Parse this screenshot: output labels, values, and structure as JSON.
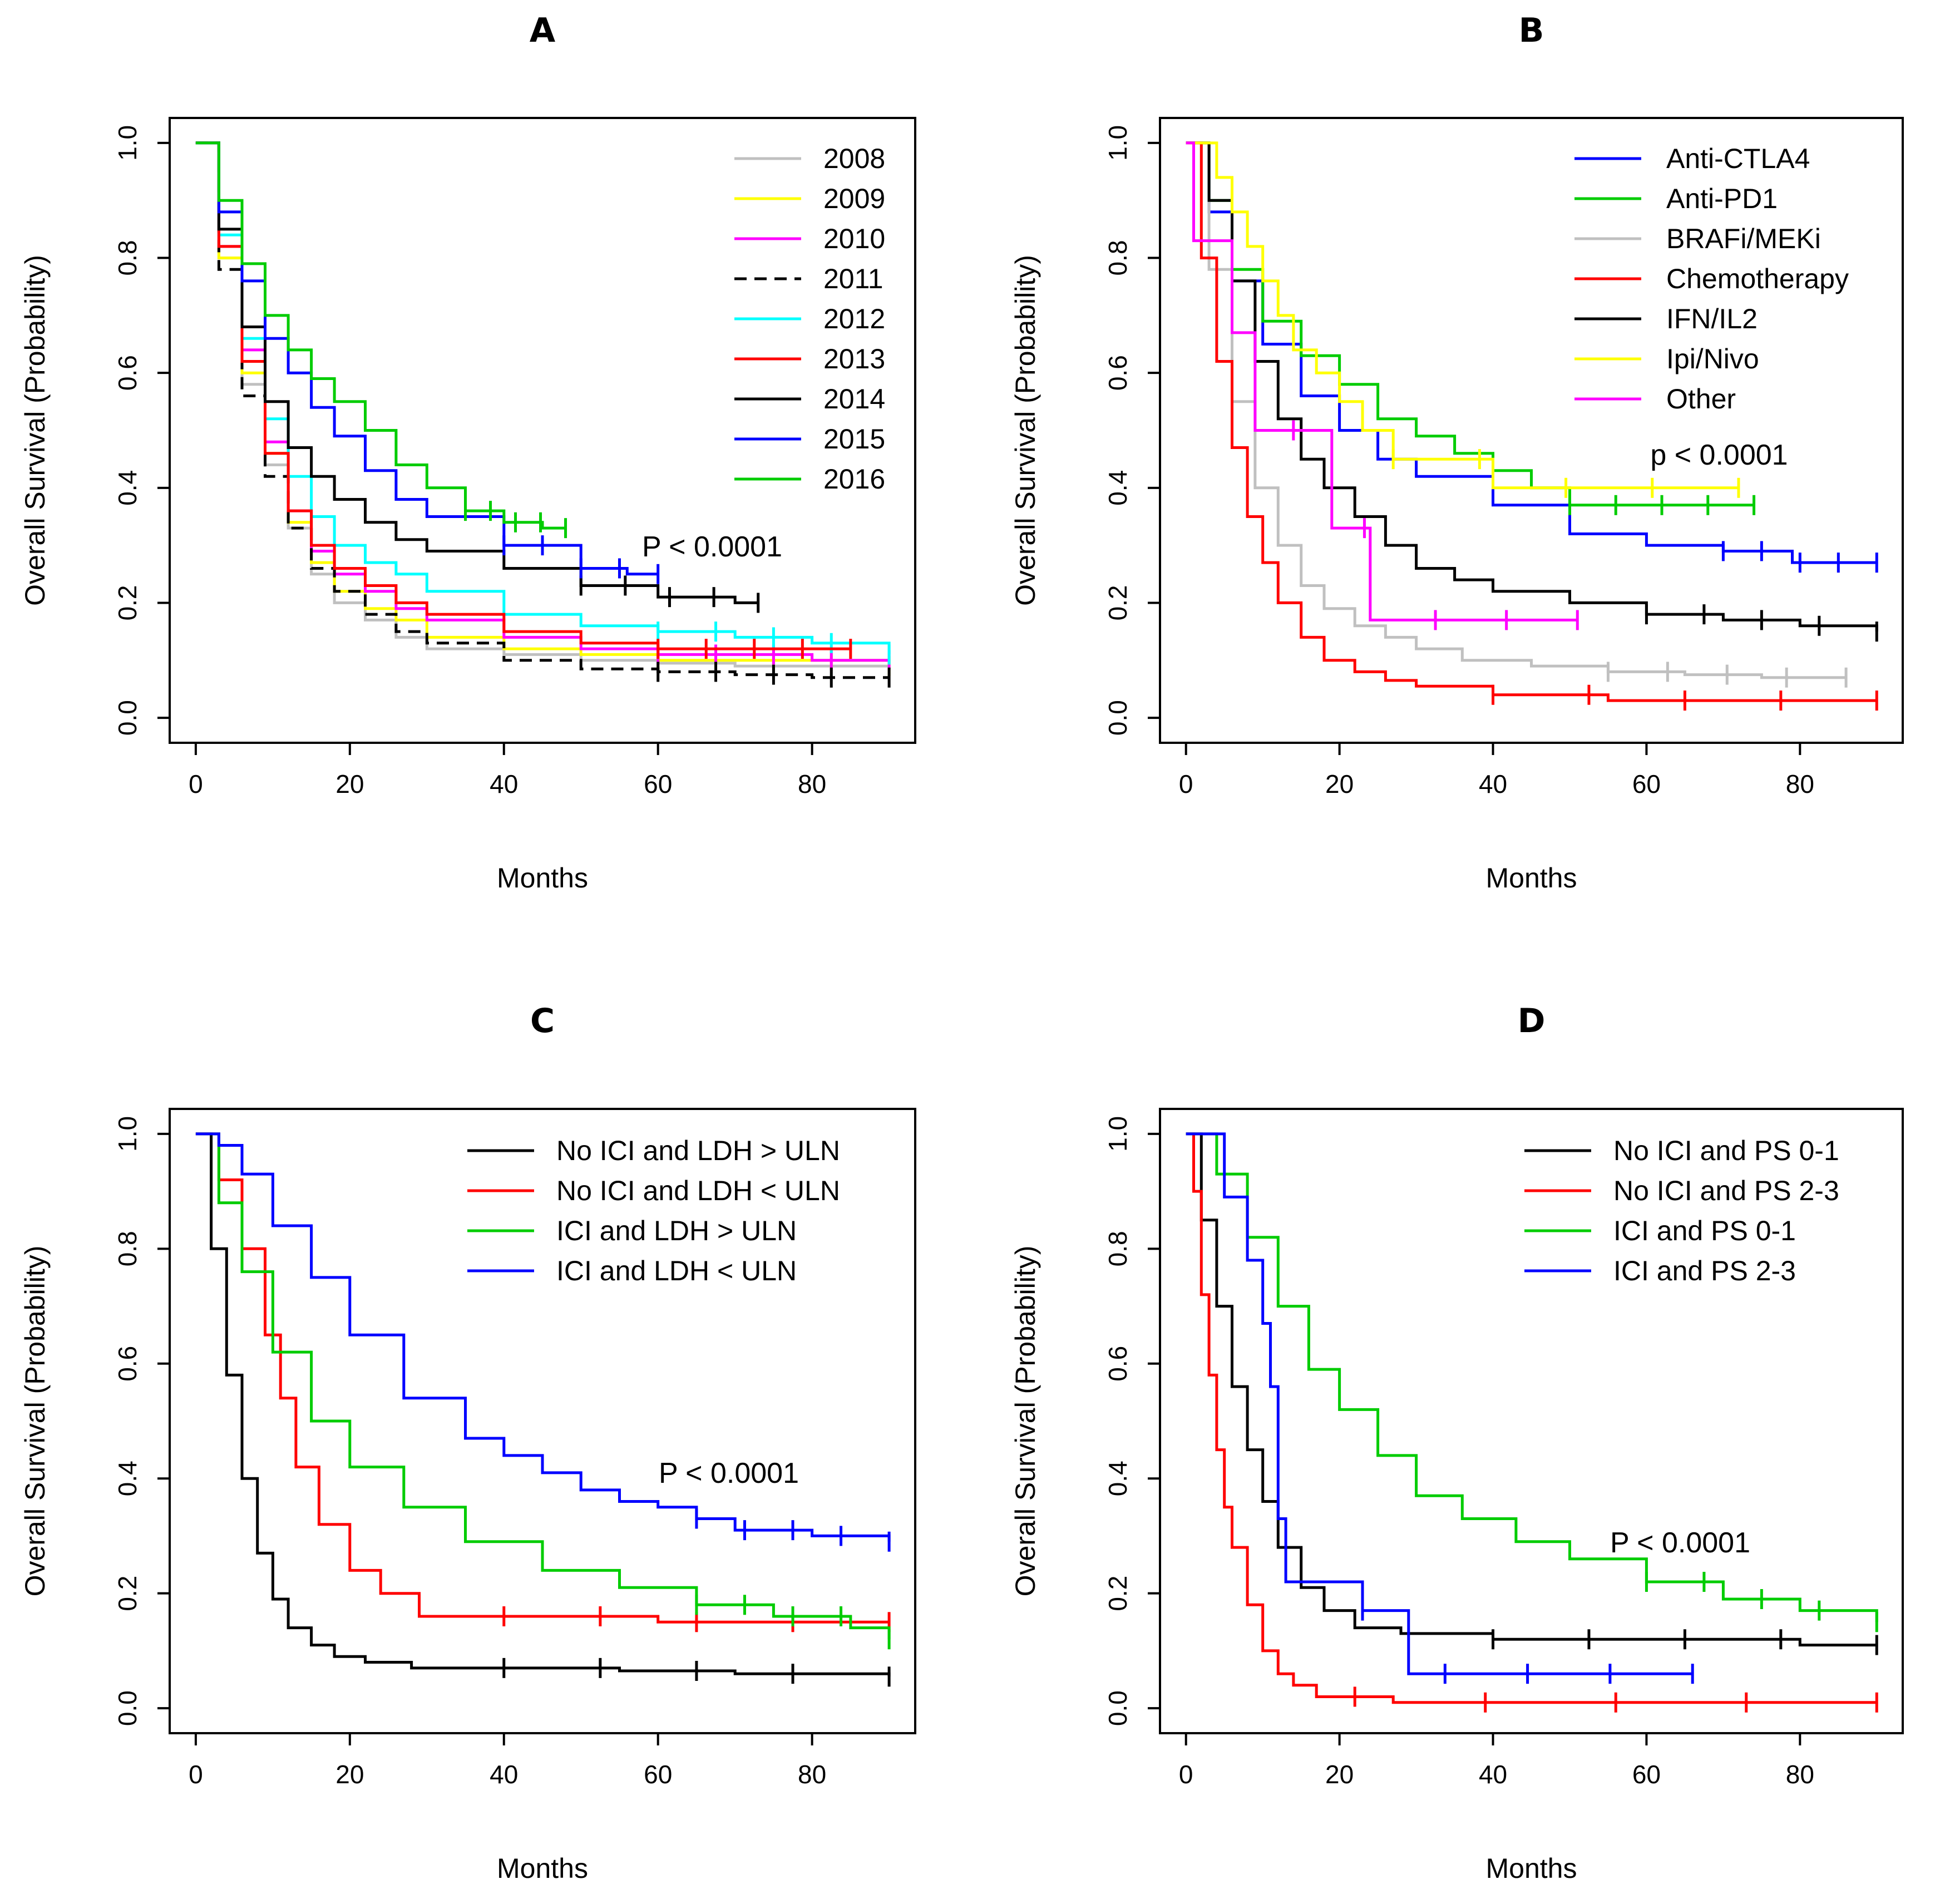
{
  "colors": {
    "grey": "#c0c0c0",
    "yellow": "#ffff00",
    "magenta": "#ff00ff",
    "black": "#000000",
    "cyan": "#00ffff",
    "red": "#ff0000",
    "blue": "#0000ff",
    "green": "#00cc00"
  },
  "chart_data": [
    {
      "type": "line",
      "panel": "A",
      "title": "A",
      "xlabel": "Months",
      "ylabel": "Overall Survival (Probability)",
      "xlim": [
        0,
        90
      ],
      "ylim": [
        0,
        1
      ],
      "xticks": [
        "0",
        "20",
        "40",
        "60",
        "80"
      ],
      "yticks": [
        "0.0",
        "0.2",
        "0.4",
        "0.6",
        "0.8",
        "1.0"
      ],
      "legend_position": "top-right",
      "annotation": "P < 0.0001",
      "series": [
        {
          "name": "2008",
          "color": "grey",
          "x": [
            0,
            3,
            6,
            9,
            12,
            15,
            18,
            22,
            26,
            30,
            40,
            50,
            60,
            70,
            80,
            90
          ],
          "y": [
            1.0,
            0.8,
            0.58,
            0.44,
            0.33,
            0.25,
            0.2,
            0.17,
            0.14,
            0.12,
            0.11,
            0.1,
            0.095,
            0.09,
            0.09,
            0.09
          ]
        },
        {
          "name": "2009",
          "color": "yellow",
          "x": [
            0,
            3,
            6,
            9,
            12,
            15,
            18,
            22,
            26,
            30,
            40,
            50,
            60,
            70,
            80,
            90
          ],
          "y": [
            1.0,
            0.8,
            0.6,
            0.46,
            0.34,
            0.27,
            0.22,
            0.19,
            0.17,
            0.14,
            0.12,
            0.11,
            0.1,
            0.1,
            0.1,
            0.09
          ]
        },
        {
          "name": "2010",
          "color": "magenta",
          "x": [
            0,
            3,
            6,
            9,
            12,
            15,
            18,
            22,
            26,
            30,
            40,
            50,
            60,
            70,
            80,
            90
          ],
          "y": [
            1.0,
            0.82,
            0.64,
            0.48,
            0.36,
            0.29,
            0.25,
            0.22,
            0.19,
            0.17,
            0.14,
            0.12,
            0.11,
            0.11,
            0.1,
            0.1
          ]
        },
        {
          "name": "2011",
          "color": "black",
          "dashed": true,
          "x": [
            0,
            3,
            6,
            9,
            12,
            15,
            18,
            22,
            26,
            30,
            40,
            50,
            60,
            70,
            80,
            90
          ],
          "y": [
            1.0,
            0.78,
            0.56,
            0.42,
            0.33,
            0.26,
            0.22,
            0.18,
            0.15,
            0.13,
            0.1,
            0.085,
            0.08,
            0.075,
            0.07,
            0.07
          ]
        },
        {
          "name": "2012",
          "color": "cyan",
          "x": [
            0,
            3,
            6,
            9,
            12,
            15,
            18,
            22,
            26,
            30,
            40,
            50,
            60,
            70,
            80,
            90
          ],
          "y": [
            1.0,
            0.84,
            0.66,
            0.52,
            0.42,
            0.35,
            0.3,
            0.27,
            0.25,
            0.22,
            0.18,
            0.16,
            0.15,
            0.14,
            0.13,
            0.11
          ]
        },
        {
          "name": "2013",
          "color": "red",
          "x": [
            0,
            3,
            6,
            9,
            12,
            15,
            18,
            22,
            26,
            30,
            40,
            50,
            60,
            70,
            80,
            85
          ],
          "y": [
            1.0,
            0.82,
            0.62,
            0.46,
            0.36,
            0.3,
            0.26,
            0.23,
            0.2,
            0.18,
            0.15,
            0.13,
            0.12,
            0.12,
            0.12,
            0.12
          ]
        },
        {
          "name": "2014",
          "color": "black",
          "x": [
            0,
            3,
            6,
            9,
            12,
            15,
            18,
            22,
            26,
            30,
            40,
            50,
            60,
            70,
            73
          ],
          "y": [
            1.0,
            0.85,
            0.68,
            0.55,
            0.47,
            0.42,
            0.38,
            0.34,
            0.31,
            0.29,
            0.26,
            0.23,
            0.21,
            0.2,
            0.2
          ]
        },
        {
          "name": "2015",
          "color": "blue",
          "x": [
            0,
            3,
            6,
            9,
            12,
            15,
            18,
            22,
            26,
            30,
            40,
            50,
            56,
            60
          ],
          "y": [
            1.0,
            0.88,
            0.76,
            0.66,
            0.6,
            0.54,
            0.49,
            0.43,
            0.38,
            0.35,
            0.3,
            0.26,
            0.25,
            0.25
          ]
        },
        {
          "name": "2016",
          "color": "green",
          "x": [
            0,
            3,
            6,
            9,
            12,
            15,
            18,
            22,
            26,
            30,
            35,
            40,
            45,
            48
          ],
          "y": [
            1.0,
            0.9,
            0.79,
            0.7,
            0.64,
            0.59,
            0.55,
            0.5,
            0.44,
            0.4,
            0.36,
            0.34,
            0.33,
            0.33
          ]
        }
      ]
    },
    {
      "type": "line",
      "panel": "B",
      "title": "B",
      "xlabel": "Months",
      "ylabel": "Overall Survival (Probability)",
      "xlim": [
        0,
        90
      ],
      "ylim": [
        0,
        1
      ],
      "xticks": [
        "0",
        "20",
        "40",
        "60",
        "80"
      ],
      "yticks": [
        "0.0",
        "0.2",
        "0.4",
        "0.6",
        "0.8",
        "1.0"
      ],
      "legend_position": "top-right",
      "annotation": "p < 0.0001",
      "series": [
        {
          "name": "Anti-CTLA4",
          "color": "blue",
          "x": [
            0,
            3,
            6,
            10,
            15,
            20,
            25,
            30,
            40,
            50,
            60,
            70,
            78,
            79,
            90
          ],
          "y": [
            1.0,
            0.88,
            0.76,
            0.65,
            0.56,
            0.5,
            0.45,
            0.42,
            0.37,
            0.32,
            0.3,
            0.29,
            0.29,
            0.27,
            0.27
          ]
        },
        {
          "name": "Anti-PD1",
          "color": "green",
          "x": [
            0,
            3,
            6,
            10,
            15,
            20,
            25,
            30,
            35,
            40,
            45,
            50,
            60,
            70,
            74
          ],
          "y": [
            1.0,
            0.9,
            0.78,
            0.69,
            0.63,
            0.58,
            0.52,
            0.49,
            0.46,
            0.43,
            0.4,
            0.37,
            0.37,
            0.37,
            0.37
          ]
        },
        {
          "name": "BRAFi/MEKi",
          "color": "grey",
          "x": [
            0,
            3,
            6,
            9,
            12,
            15,
            18,
            22,
            26,
            30,
            36,
            45,
            55,
            65,
            75,
            86
          ],
          "y": [
            1.0,
            0.78,
            0.55,
            0.4,
            0.3,
            0.23,
            0.19,
            0.16,
            0.14,
            0.12,
            0.1,
            0.09,
            0.08,
            0.075,
            0.07,
            0.07
          ]
        },
        {
          "name": "Chemotherapy",
          "color": "red",
          "x": [
            0,
            2,
            4,
            6,
            8,
            10,
            12,
            15,
            18,
            22,
            26,
            30,
            40,
            55,
            70,
            90
          ],
          "y": [
            1.0,
            0.8,
            0.62,
            0.47,
            0.35,
            0.27,
            0.2,
            0.14,
            0.1,
            0.08,
            0.065,
            0.055,
            0.04,
            0.03,
            0.03,
            0.03
          ]
        },
        {
          "name": "IFN/IL2",
          "color": "black",
          "x": [
            0,
            3,
            6,
            9,
            12,
            15,
            18,
            22,
            26,
            30,
            35,
            40,
            50,
            60,
            70,
            80,
            90
          ],
          "y": [
            1.0,
            0.9,
            0.76,
            0.62,
            0.52,
            0.45,
            0.4,
            0.35,
            0.3,
            0.26,
            0.24,
            0.22,
            0.2,
            0.18,
            0.17,
            0.16,
            0.15
          ]
        },
        {
          "name": "Ipi/Nivo",
          "color": "yellow",
          "x": [
            0,
            2,
            4,
            6,
            8,
            10,
            12,
            14,
            17,
            20,
            23,
            27,
            40,
            50,
            72
          ],
          "y": [
            1.0,
            1.0,
            0.94,
            0.88,
            0.82,
            0.76,
            0.7,
            0.64,
            0.6,
            0.55,
            0.5,
            0.45,
            0.4,
            0.4,
            0.4
          ]
        },
        {
          "name": "Other",
          "color": "magenta",
          "x": [
            0,
            1,
            2,
            4,
            6,
            9,
            14,
            19,
            24,
            51
          ],
          "y": [
            1.0,
            0.83,
            0.83,
            0.83,
            0.67,
            0.5,
            0.5,
            0.33,
            0.17,
            0.17
          ]
        }
      ]
    },
    {
      "type": "line",
      "panel": "C",
      "title": "C",
      "xlabel": "Months",
      "ylabel": "Overall Survival (Probability)",
      "xlim": [
        0,
        90
      ],
      "ylim": [
        0,
        1
      ],
      "xticks": [
        "0",
        "20",
        "40",
        "60",
        "80"
      ],
      "yticks": [
        "0.0",
        "0.2",
        "0.4",
        "0.6",
        "0.8",
        "1.0"
      ],
      "legend_position": "top-right",
      "annotation": "P < 0.0001",
      "series": [
        {
          "name": "No ICI and LDH > ULN",
          "color": "black",
          "x": [
            0,
            2,
            4,
            6,
            8,
            10,
            12,
            15,
            18,
            22,
            28,
            40,
            55,
            70,
            90
          ],
          "y": [
            1.0,
            0.8,
            0.58,
            0.4,
            0.27,
            0.19,
            0.14,
            0.11,
            0.09,
            0.08,
            0.07,
            0.07,
            0.065,
            0.06,
            0.055
          ]
        },
        {
          "name": "No ICI and LDH < ULN",
          "color": "red",
          "x": [
            0,
            3,
            6,
            9,
            11,
            13,
            16,
            20,
            24,
            29,
            40,
            60,
            80,
            90
          ],
          "y": [
            1.0,
            0.92,
            0.8,
            0.65,
            0.54,
            0.42,
            0.32,
            0.24,
            0.2,
            0.16,
            0.16,
            0.15,
            0.15,
            0.15
          ]
        },
        {
          "name": "ICI and LDH > ULN",
          "color": "green",
          "x": [
            0,
            3,
            6,
            10,
            15,
            20,
            27,
            35,
            45,
            55,
            65,
            75,
            85,
            90
          ],
          "y": [
            1.0,
            0.88,
            0.76,
            0.62,
            0.5,
            0.42,
            0.35,
            0.29,
            0.24,
            0.21,
            0.18,
            0.16,
            0.14,
            0.12
          ]
        },
        {
          "name": "ICI and LDH < ULN",
          "color": "blue",
          "x": [
            0,
            3,
            6,
            10,
            15,
            20,
            27,
            35,
            40,
            45,
            50,
            55,
            60,
            65,
            70,
            80,
            90
          ],
          "y": [
            1.0,
            0.98,
            0.93,
            0.84,
            0.75,
            0.65,
            0.54,
            0.47,
            0.44,
            0.41,
            0.38,
            0.36,
            0.35,
            0.33,
            0.31,
            0.3,
            0.29
          ]
        }
      ]
    },
    {
      "type": "line",
      "panel": "D",
      "title": "D",
      "xlabel": "Months",
      "ylabel": "Overall Survival (Probability)",
      "xlim": [
        0,
        90
      ],
      "ylim": [
        0,
        1
      ],
      "xticks": [
        "0",
        "20",
        "40",
        "60",
        "80"
      ],
      "yticks": [
        "0.0",
        "0.2",
        "0.4",
        "0.6",
        "0.8",
        "1.0"
      ],
      "legend_position": "top-right",
      "annotation": "P < 0.0001",
      "series": [
        {
          "name": "No ICI and PS 0-1",
          "color": "black",
          "x": [
            0,
            2,
            4,
            6,
            8,
            10,
            12,
            15,
            18,
            22,
            28,
            40,
            60,
            80,
            90
          ],
          "y": [
            1.0,
            0.85,
            0.7,
            0.56,
            0.45,
            0.36,
            0.28,
            0.21,
            0.17,
            0.14,
            0.13,
            0.12,
            0.12,
            0.11,
            0.11
          ]
        },
        {
          "name": "No ICI and PS 2-3",
          "color": "red",
          "x": [
            0,
            1,
            2,
            3,
            4,
            5,
            6,
            8,
            10,
            12,
            14,
            17,
            22,
            27,
            40,
            90
          ],
          "y": [
            1.0,
            0.9,
            0.72,
            0.58,
            0.45,
            0.35,
            0.28,
            0.18,
            0.1,
            0.06,
            0.04,
            0.02,
            0.02,
            0.01,
            0.01,
            0.01
          ]
        },
        {
          "name": "ICI and PS 0-1",
          "color": "green",
          "x": [
            0,
            4,
            8,
            12,
            16,
            20,
            25,
            30,
            36,
            43,
            50,
            60,
            70,
            80,
            90
          ],
          "y": [
            1.0,
            0.93,
            0.82,
            0.7,
            0.59,
            0.52,
            0.44,
            0.37,
            0.33,
            0.29,
            0.26,
            0.22,
            0.19,
            0.17,
            0.15
          ]
        },
        {
          "name": "ICI and PS 2-3",
          "color": "blue",
          "x": [
            0,
            4,
            5,
            7,
            8,
            10,
            11,
            12,
            13,
            22,
            23,
            29,
            30,
            66
          ],
          "y": [
            1.0,
            1.0,
            0.89,
            0.89,
            0.78,
            0.67,
            0.56,
            0.33,
            0.22,
            0.22,
            0.17,
            0.06,
            0.06,
            0.06
          ]
        }
      ]
    }
  ]
}
